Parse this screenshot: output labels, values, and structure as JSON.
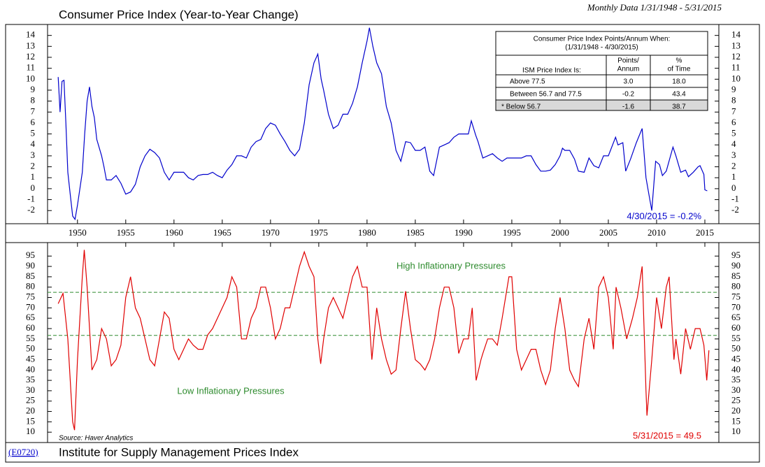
{
  "header": {
    "note": "Monthly Data 1/31/1948 - 5/31/2015"
  },
  "footer": {
    "code": "(E0720)",
    "title": "Institute for Supply Management Prices Index"
  },
  "chart_data": [
    {
      "type": "line",
      "title": "Consumer Price Index (Year-to-Year Change)",
      "xlim": [
        1946.9,
        2016.45
      ],
      "xticks": [
        1950,
        1955,
        1960,
        1965,
        1970,
        1975,
        1980,
        1985,
        1990,
        1995,
        2000,
        2005,
        2010,
        2015
      ],
      "ylim": [
        -3.2,
        15
      ],
      "yticks": [
        -2,
        -1,
        0,
        1,
        2,
        3,
        4,
        5,
        6,
        7,
        8,
        9,
        10,
        11,
        12,
        13,
        14
      ],
      "annotation": "4/30/2015 = -0.2%",
      "x": [
        1948.0,
        1948.2,
        1948.4,
        1948.6,
        1948.8,
        1949.0,
        1949.25,
        1949.5,
        1949.75,
        1950.0,
        1950.5,
        1950.75,
        1951.0,
        1951.25,
        1951.5,
        1951.75,
        1952.0,
        1952.5,
        1952.75,
        1953.0,
        1953.5,
        1954.0,
        1954.5,
        1955.0,
        1955.5,
        1956.0,
        1956.5,
        1957.0,
        1957.5,
        1958.0,
        1958.5,
        1959.0,
        1959.5,
        1960.0,
        1960.5,
        1961.0,
        1961.5,
        1962.0,
        1962.5,
        1963.0,
        1963.5,
        1964.0,
        1964.5,
        1965.0,
        1965.5,
        1966.0,
        1966.5,
        1967.0,
        1967.5,
        1968.0,
        1968.5,
        1969.0,
        1969.5,
        1970.0,
        1970.5,
        1971.0,
        1971.5,
        1972.0,
        1972.5,
        1973.0,
        1973.5,
        1974.0,
        1974.5,
        1974.9,
        1975.25,
        1975.5,
        1976.0,
        1976.5,
        1977.0,
        1977.5,
        1978.0,
        1978.5,
        1979.0,
        1979.5,
        1980.0,
        1980.25,
        1980.6,
        1981.0,
        1981.5,
        1982.0,
        1982.5,
        1983.0,
        1983.5,
        1984.0,
        1984.5,
        1985.0,
        1985.5,
        1986.0,
        1986.5,
        1986.9,
        1987.5,
        1988.0,
        1988.5,
        1989.0,
        1989.5,
        1990.0,
        1990.5,
        1990.8,
        1991.25,
        1991.5,
        1992.0,
        1992.5,
        1993.0,
        1993.5,
        1994.0,
        1994.5,
        1995.0,
        1995.5,
        1996.0,
        1996.5,
        1997.0,
        1997.5,
        1998.0,
        1998.5,
        1999.0,
        1999.5,
        2000.0,
        2000.25,
        2000.5,
        2001.0,
        2001.5,
        2001.9,
        2002.5,
        2003.0,
        2003.5,
        2004.0,
        2004.5,
        2005.0,
        2005.75,
        2006.0,
        2006.5,
        2006.8,
        2007.3,
        2007.9,
        2008.5,
        2008.9,
        2009.2,
        2009.5,
        2009.9,
        2010.3,
        2010.6,
        2011.0,
        2011.7,
        2012.0,
        2012.5,
        2013.0,
        2013.3,
        2013.8,
        2014.3,
        2014.5,
        2014.9,
        2015.0,
        2015.25
      ],
      "series": [
        {
          "color": "#0000cc",
          "values": [
            10.2,
            7,
            9.8,
            9.9,
            6,
            1.5,
            -0.5,
            -2.5,
            -2.8,
            -1.5,
            1.5,
            5,
            8,
            9.3,
            7.5,
            6.5,
            4.5,
            3,
            2,
            0.8,
            0.8,
            1.2,
            0.5,
            -0.5,
            -0.3,
            0.4,
            2,
            3,
            3.6,
            3.3,
            2.8,
            1.5,
            0.8,
            1.5,
            1.5,
            1.5,
            1,
            0.8,
            1.2,
            1.3,
            1.3,
            1.5,
            1.2,
            1,
            1.7,
            2.2,
            3,
            3,
            2.8,
            3.8,
            4.3,
            4.5,
            5.5,
            6,
            5.8,
            5,
            4.3,
            3.5,
            3,
            3.6,
            6,
            9.5,
            11.5,
            12.3,
            10,
            9,
            6.8,
            5.5,
            5.8,
            6.8,
            6.8,
            7.8,
            9.3,
            11.5,
            13.5,
            14.7,
            13,
            11.5,
            10.5,
            7.5,
            6,
            3.5,
            2.5,
            4.3,
            4.2,
            3.5,
            3.5,
            3.8,
            1.6,
            1.2,
            3.8,
            4,
            4.2,
            4.7,
            5,
            5,
            5,
            6.2,
            4.9,
            4.3,
            2.8,
            3,
            3.2,
            2.8,
            2.5,
            2.8,
            2.8,
            2.8,
            2.8,
            3,
            3,
            2.2,
            1.6,
            1.6,
            1.7,
            2.2,
            3,
            3.7,
            3.5,
            3.5,
            2.7,
            1.6,
            1.5,
            2.8,
            2.1,
            1.9,
            3,
            3,
            4.7,
            4,
            4.2,
            1.6,
            2.7,
            4.2,
            5.5,
            1,
            -0.5,
            -2,
            2.5,
            2.2,
            1.2,
            1.6,
            3.8,
            3,
            1.5,
            1.7,
            1.1,
            1.5,
            2,
            2.1,
            1.3,
            -0.1,
            -0.2
          ]
        }
      ],
      "table": {
        "title": "Consumer Price Index Points/Annum When:",
        "subtitle": "(1/31/1948 - 4/30/2015)",
        "columns": [
          [
            "ISM Price Index Is:"
          ],
          [
            "Points/",
            "Annum"
          ],
          [
            "%",
            "of Time"
          ]
        ],
        "rows": [
          [
            "Above 77.5",
            "3.0",
            "18.0"
          ],
          [
            "Between 56.7 and 77.5",
            "-0.2",
            "43.4"
          ],
          [
            "* Below 56.7",
            "-1.6",
            "38.7"
          ]
        ],
        "highlight_row": 2
      }
    },
    {
      "type": "line",
      "xlim": [
        1946.9,
        2016.45
      ],
      "ylim": [
        5,
        101.5
      ],
      "yticks": [
        10,
        15,
        20,
        25,
        30,
        35,
        40,
        45,
        50,
        55,
        60,
        65,
        70,
        75,
        80,
        85,
        90,
        95
      ],
      "reference_lines": [
        77.5,
        56.7
      ],
      "reference_color": "#2e8b2e",
      "annotations": {
        "high": "High Inflationary Pressures",
        "low": "Low Inflationary Pressures",
        "last": "5/31/2015 = 49.5",
        "source": "Source: Haver Analytics"
      },
      "x": [
        1948.0,
        1948.5,
        1949.0,
        1949.5,
        1949.7,
        1950.0,
        1950.5,
        1950.7,
        1951.0,
        1951.5,
        1952.0,
        1952.5,
        1953.0,
        1953.5,
        1954.0,
        1954.5,
        1955.0,
        1955.5,
        1956.0,
        1956.5,
        1957.0,
        1957.5,
        1958.0,
        1958.5,
        1959.0,
        1959.5,
        1960.0,
        1960.5,
        1961.0,
        1961.5,
        1962.0,
        1962.5,
        1963.0,
        1963.5,
        1964.0,
        1964.5,
        1965.0,
        1965.5,
        1966.0,
        1966.5,
        1967.0,
        1967.5,
        1968.0,
        1968.5,
        1969.0,
        1969.5,
        1970.0,
        1970.5,
        1971.0,
        1971.5,
        1972.0,
        1972.5,
        1973.0,
        1973.5,
        1974.0,
        1974.5,
        1974.9,
        1975.2,
        1975.5,
        1976.0,
        1976.5,
        1977.0,
        1977.5,
        1978.0,
        1978.5,
        1979.0,
        1979.5,
        1980.0,
        1980.5,
        1981.0,
        1981.5,
        1982.0,
        1982.5,
        1983.0,
        1983.5,
        1984.0,
        1984.5,
        1985.0,
        1985.5,
        1986.0,
        1986.5,
        1987.0,
        1987.5,
        1988.0,
        1988.5,
        1989.0,
        1989.5,
        1990.0,
        1990.5,
        1990.9,
        1991.3,
        1991.8,
        1992.0,
        1992.5,
        1993.0,
        1993.5,
        1994.0,
        1994.7,
        1995.0,
        1995.5,
        1996.0,
        1996.5,
        1997.0,
        1997.5,
        1998.0,
        1998.5,
        1999.0,
        1999.5,
        2000.0,
        2000.5,
        2001.0,
        2001.5,
        2001.9,
        2002.5,
        2003.0,
        2003.5,
        2004.0,
        2004.5,
        2005.0,
        2005.5,
        2005.8,
        2006.3,
        2006.9,
        2007.5,
        2008.0,
        2008.5,
        2008.9,
        2009.0,
        2009.5,
        2010.0,
        2010.5,
        2011.0,
        2011.3,
        2011.8,
        2012.0,
        2012.5,
        2013.0,
        2013.5,
        2014.0,
        2014.5,
        2014.9,
        2015.2,
        2015.42
      ],
      "series": [
        {
          "color": "#e00000",
          "values": [
            72,
            77,
            55,
            15,
            11,
            45,
            85,
            98,
            80,
            40,
            45,
            60,
            55,
            42,
            45,
            52,
            75,
            85,
            70,
            65,
            55,
            45,
            42,
            55,
            68,
            65,
            50,
            45,
            50,
            55,
            52,
            50,
            50,
            57,
            60,
            65,
            70,
            75,
            85,
            80,
            55,
            55,
            65,
            70,
            80,
            80,
            70,
            55,
            60,
            70,
            70,
            80,
            90,
            97,
            90,
            85,
            55,
            43,
            55,
            70,
            75,
            70,
            65,
            75,
            85,
            90,
            80,
            80,
            45,
            70,
            55,
            45,
            38,
            40,
            60,
            78,
            60,
            45,
            43,
            40,
            45,
            55,
            70,
            80,
            80,
            70,
            48,
            55,
            55,
            70,
            35,
            45,
            48,
            55,
            55,
            52,
            65,
            85,
            85,
            50,
            40,
            45,
            50,
            50,
            40,
            33,
            40,
            60,
            75,
            60,
            40,
            35,
            32,
            55,
            65,
            50,
            80,
            85,
            75,
            50,
            80,
            70,
            55,
            65,
            75,
            90,
            30,
            18,
            45,
            75,
            60,
            80,
            85,
            45,
            55,
            38,
            60,
            50,
            60,
            60,
            52,
            35,
            49.5
          ]
        }
      ]
    }
  ]
}
